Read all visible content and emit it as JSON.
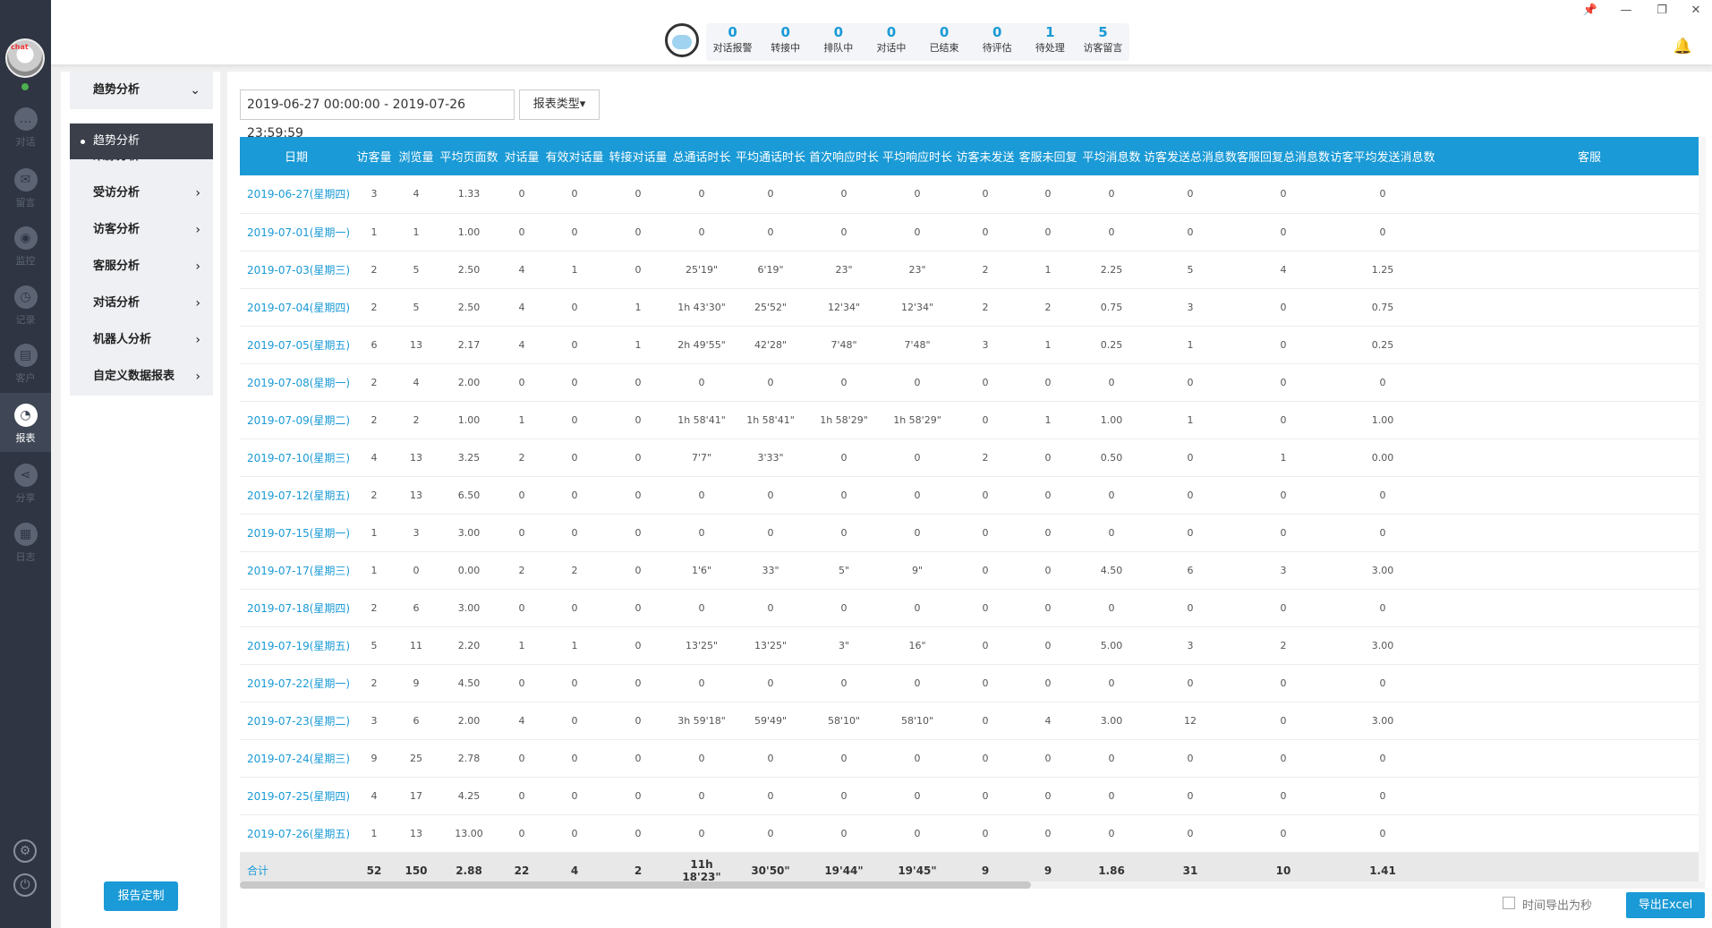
{
  "rail": {
    "avatar_tag": "chat",
    "items": [
      {
        "label": "对话",
        "icon": "chat-icon",
        "glyph": "…"
      },
      {
        "label": "留言",
        "icon": "mail-icon",
        "glyph": "✉"
      },
      {
        "label": "监控",
        "icon": "eye-icon",
        "glyph": "◉"
      },
      {
        "label": "记录",
        "icon": "clock-icon",
        "glyph": "◷"
      },
      {
        "label": "客户",
        "icon": "contact-card-icon",
        "glyph": "▤"
      },
      {
        "label": "报表",
        "icon": "pie-chart-icon",
        "glyph": "◔"
      },
      {
        "label": "分享",
        "icon": "share-icon",
        "glyph": "⋖"
      },
      {
        "label": "日志",
        "icon": "clipboard-icon",
        "glyph": "▦"
      }
    ],
    "settings_glyph": "⚙",
    "power_glyph": "⏻"
  },
  "topbar": {
    "stats": [
      {
        "value": "0",
        "label": "对话报警"
      },
      {
        "value": "0",
        "label": "转接中"
      },
      {
        "value": "0",
        "label": "排队中"
      },
      {
        "value": "0",
        "label": "对话中"
      },
      {
        "value": "0",
        "label": "已结束"
      },
      {
        "value": "0",
        "label": "待评估"
      },
      {
        "value": "1",
        "label": "待处理"
      },
      {
        "value": "5",
        "label": "访客留言"
      }
    ],
    "window_controls": [
      "📌",
      "—",
      "❐",
      "✕"
    ],
    "bell_glyph": "🔔"
  },
  "menu": {
    "items": [
      {
        "label": "趋势分析",
        "chev": "⌄"
      },
      {
        "label": "来源分析",
        "chev": "›"
      },
      {
        "label": "受访分析",
        "chev": "›"
      },
      {
        "label": "访客分析",
        "chev": "›"
      },
      {
        "label": "客服分析",
        "chev": "›"
      },
      {
        "label": "对话分析",
        "chev": "›"
      },
      {
        "label": "机器人分析",
        "chev": "›"
      },
      {
        "label": "自定义数据报表",
        "chev": "›"
      }
    ],
    "active_sub": "趋势分析",
    "report_button": "报告定制"
  },
  "filters": {
    "date_range": "2019-06-27 00:00:00  - 2019-07-26 23:59:59",
    "report_type": "报表类型▾"
  },
  "table": {
    "headers": [
      "日期",
      "访客量",
      "浏览量",
      "平均页面数",
      "对话量",
      "有效对话量",
      "转接对话量",
      "总通话时长",
      "平均通话时长",
      "首次响应时长",
      "平均响应时长",
      "访客未发送",
      "客服未回复",
      "平均消息数",
      "访客发送总消息数",
      "客服回复总消息数",
      "访客平均发送消息数",
      "客服"
    ],
    "rows": [
      [
        "2019-06-27(星期四)",
        "3",
        "4",
        "1.33",
        "0",
        "0",
        "0",
        "0",
        "0",
        "0",
        "0",
        "0",
        "0",
        "0",
        "0",
        "0",
        "0",
        ""
      ],
      [
        "2019-07-01(星期一)",
        "1",
        "1",
        "1.00",
        "0",
        "0",
        "0",
        "0",
        "0",
        "0",
        "0",
        "0",
        "0",
        "0",
        "0",
        "0",
        "0",
        ""
      ],
      [
        "2019-07-03(星期三)",
        "2",
        "5",
        "2.50",
        "4",
        "1",
        "0",
        "25'19\"",
        "6'19\"",
        "23\"",
        "23\"",
        "2",
        "1",
        "2.25",
        "5",
        "4",
        "1.25",
        ""
      ],
      [
        "2019-07-04(星期四)",
        "2",
        "5",
        "2.50",
        "4",
        "0",
        "1",
        "1h 43'30\"",
        "25'52\"",
        "12'34\"",
        "12'34\"",
        "2",
        "2",
        "0.75",
        "3",
        "0",
        "0.75",
        ""
      ],
      [
        "2019-07-05(星期五)",
        "6",
        "13",
        "2.17",
        "4",
        "0",
        "1",
        "2h 49'55\"",
        "42'28\"",
        "7'48\"",
        "7'48\"",
        "3",
        "1",
        "0.25",
        "1",
        "0",
        "0.25",
        ""
      ],
      [
        "2019-07-08(星期一)",
        "2",
        "4",
        "2.00",
        "0",
        "0",
        "0",
        "0",
        "0",
        "0",
        "0",
        "0",
        "0",
        "0",
        "0",
        "0",
        "0",
        ""
      ],
      [
        "2019-07-09(星期二)",
        "2",
        "2",
        "1.00",
        "1",
        "0",
        "0",
        "1h 58'41\"",
        "1h 58'41\"",
        "1h 58'29\"",
        "1h 58'29\"",
        "0",
        "1",
        "1.00",
        "1",
        "0",
        "1.00",
        ""
      ],
      [
        "2019-07-10(星期三)",
        "4",
        "13",
        "3.25",
        "2",
        "0",
        "0",
        "7'7\"",
        "3'33\"",
        "0",
        "0",
        "2",
        "0",
        "0.50",
        "0",
        "1",
        "0.00",
        ""
      ],
      [
        "2019-07-12(星期五)",
        "2",
        "13",
        "6.50",
        "0",
        "0",
        "0",
        "0",
        "0",
        "0",
        "0",
        "0",
        "0",
        "0",
        "0",
        "0",
        "0",
        ""
      ],
      [
        "2019-07-15(星期一)",
        "1",
        "3",
        "3.00",
        "0",
        "0",
        "0",
        "0",
        "0",
        "0",
        "0",
        "0",
        "0",
        "0",
        "0",
        "0",
        "0",
        ""
      ],
      [
        "2019-07-17(星期三)",
        "1",
        "0",
        "0.00",
        "2",
        "2",
        "0",
        "1'6\"",
        "33\"",
        "5\"",
        "9\"",
        "0",
        "0",
        "4.50",
        "6",
        "3",
        "3.00",
        ""
      ],
      [
        "2019-07-18(星期四)",
        "2",
        "6",
        "3.00",
        "0",
        "0",
        "0",
        "0",
        "0",
        "0",
        "0",
        "0",
        "0",
        "0",
        "0",
        "0",
        "0",
        ""
      ],
      [
        "2019-07-19(星期五)",
        "5",
        "11",
        "2.20",
        "1",
        "1",
        "0",
        "13'25\"",
        "13'25\"",
        "3\"",
        "16\"",
        "0",
        "0",
        "5.00",
        "3",
        "2",
        "3.00",
        ""
      ],
      [
        "2019-07-22(星期一)",
        "2",
        "9",
        "4.50",
        "0",
        "0",
        "0",
        "0",
        "0",
        "0",
        "0",
        "0",
        "0",
        "0",
        "0",
        "0",
        "0",
        ""
      ],
      [
        "2019-07-23(星期二)",
        "3",
        "6",
        "2.00",
        "4",
        "0",
        "0",
        "3h 59'18\"",
        "59'49\"",
        "58'10\"",
        "58'10\"",
        "0",
        "4",
        "3.00",
        "12",
        "0",
        "3.00",
        ""
      ],
      [
        "2019-07-24(星期三)",
        "9",
        "25",
        "2.78",
        "0",
        "0",
        "0",
        "0",
        "0",
        "0",
        "0",
        "0",
        "0",
        "0",
        "0",
        "0",
        "0",
        ""
      ],
      [
        "2019-07-25(星期四)",
        "4",
        "17",
        "4.25",
        "0",
        "0",
        "0",
        "0",
        "0",
        "0",
        "0",
        "0",
        "0",
        "0",
        "0",
        "0",
        "0",
        ""
      ],
      [
        "2019-07-26(星期五)",
        "1",
        "13",
        "13.00",
        "0",
        "0",
        "0",
        "0",
        "0",
        "0",
        "0",
        "0",
        "0",
        "0",
        "0",
        "0",
        "0",
        ""
      ]
    ],
    "totals": [
      "合计",
      "52",
      "150",
      "2.88",
      "22",
      "4",
      "2",
      "11h 18'23\"",
      "30'50\"",
      "19'44\"",
      "19'45\"",
      "9",
      "9",
      "1.86",
      "31",
      "10",
      "1.41",
      ""
    ]
  },
  "footer": {
    "export_seconds_label": "时间导出为秒",
    "export_button": "导出Excel"
  },
  "colors": {
    "accent": "#1a9ad6",
    "rail": "#2f3542"
  }
}
